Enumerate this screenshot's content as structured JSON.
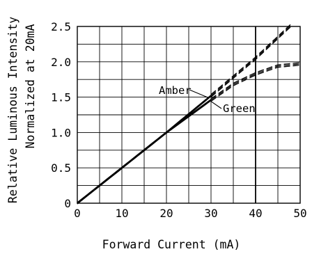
{
  "chart_data": {
    "type": "line",
    "xlabel": "Forward Current (mA)",
    "ylabel": [
      "Relative Luminous Intensity",
      "Normalized at 20mA"
    ],
    "xlim": [
      0,
      50
    ],
    "ylim": [
      0,
      2.5
    ],
    "x_ticks": [
      0,
      10,
      20,
      30,
      40,
      50
    ],
    "x_tick_labels": [
      "0",
      "10",
      "20",
      "30",
      "40",
      "50"
    ],
    "y_ticks": [
      0,
      0.5,
      1.0,
      1.5,
      2.0,
      2.5
    ],
    "y_tick_labels": [
      "0",
      "0.5",
      "1.0",
      "1.5",
      "2.0",
      "2.5"
    ],
    "x_grid_step": 5,
    "y_grid_step": 0.25,
    "grid": true,
    "series": [
      {
        "name": "Amber",
        "x": [
          0,
          10,
          20,
          30,
          40,
          48
        ],
        "y": [
          0,
          0.5,
          1.0,
          1.52,
          2.05,
          2.52
        ],
        "x_solid_until": 30,
        "style": "solid-then-dashed"
      },
      {
        "name": "Green",
        "x": [
          0,
          10,
          20,
          30,
          35,
          40,
          45,
          50
        ],
        "y": [
          0,
          0.5,
          1.0,
          1.46,
          1.68,
          1.83,
          1.94,
          1.97
        ],
        "x_solid_until": 30,
        "style": "solid-then-dashed"
      }
    ],
    "annotations": [
      {
        "text": "Amber",
        "series": "Amber"
      },
      {
        "text": "Green",
        "series": "Green"
      }
    ]
  }
}
